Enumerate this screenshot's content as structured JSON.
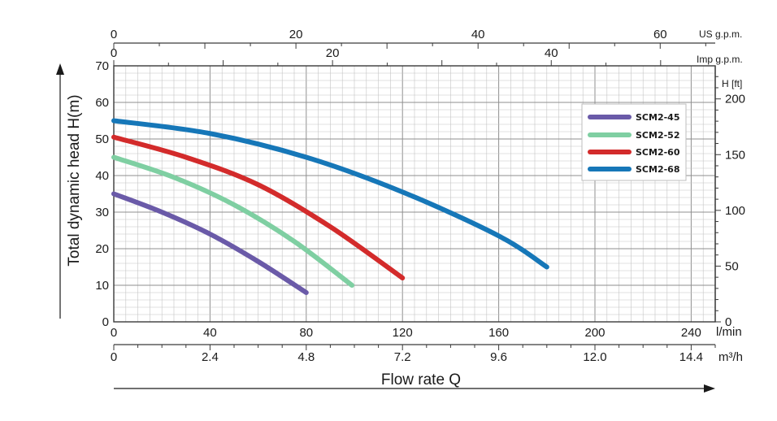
{
  "chart_data": {
    "type": "line",
    "ylabel": "Total dynamic head H(m)",
    "xlabel": "Flow rate Q",
    "x_unit": "l/min",
    "x2_unit": "m³/h",
    "top_unit_1": "US g.p.m.",
    "top_unit_2": "Imp g.p.m.",
    "right_unit": "H [ft]",
    "xlim": [
      0,
      250
    ],
    "ylim": [
      0,
      70
    ],
    "grid": true,
    "legend_position": "top-right",
    "x_ticks": [
      "0",
      "40",
      "80",
      "120",
      "160",
      "200",
      "240"
    ],
    "x_tick_values": [
      0,
      40,
      80,
      120,
      160,
      200,
      240
    ],
    "x2_ticks": [
      "0",
      "2.4",
      "4.8",
      "7.2",
      "9.6",
      "12.0",
      "14.4"
    ],
    "x2_tick_values": [
      0,
      40,
      80,
      120,
      160,
      200,
      240
    ],
    "y_ticks": [
      "0",
      "10",
      "20",
      "30",
      "40",
      "50",
      "60",
      "70"
    ],
    "y_tick_values": [
      0,
      10,
      20,
      30,
      40,
      50,
      60,
      70
    ],
    "right_ticks": [
      "0",
      "50",
      "100",
      "150",
      "200"
    ],
    "right_tick_values": [
      0,
      50,
      100,
      150,
      200
    ],
    "us_gpm_ticks": [
      "0",
      "20",
      "40",
      "60"
    ],
    "us_gpm_tick_values": [
      0,
      20,
      40,
      60
    ],
    "imp_gpm_ticks": [
      "0",
      "20",
      "40"
    ],
    "imp_gpm_tick_values": [
      0,
      20,
      40
    ],
    "series": [
      {
        "name": "SCM2-45",
        "color": "#6a5aa8",
        "x": [
          0,
          20,
          40,
          60,
          80
        ],
        "y": [
          35,
          30,
          24,
          16.5,
          8
        ]
      },
      {
        "name": "SCM2-52",
        "color": "#7fcfa2",
        "x": [
          0,
          25,
          50,
          75,
          99
        ],
        "y": [
          45,
          39.5,
          32,
          22,
          10
        ]
      },
      {
        "name": "SCM2-60",
        "color": "#d32b2b",
        "x": [
          0,
          30,
          60,
          90,
          120
        ],
        "y": [
          50.5,
          45,
          37.5,
          26,
          12
        ]
      },
      {
        "name": "SCM2-68",
        "color": "#1677b8",
        "x": [
          0,
          40,
          80,
          120,
          160,
          180
        ],
        "y": [
          55,
          51.5,
          45,
          35.5,
          23.5,
          15
        ]
      }
    ]
  }
}
